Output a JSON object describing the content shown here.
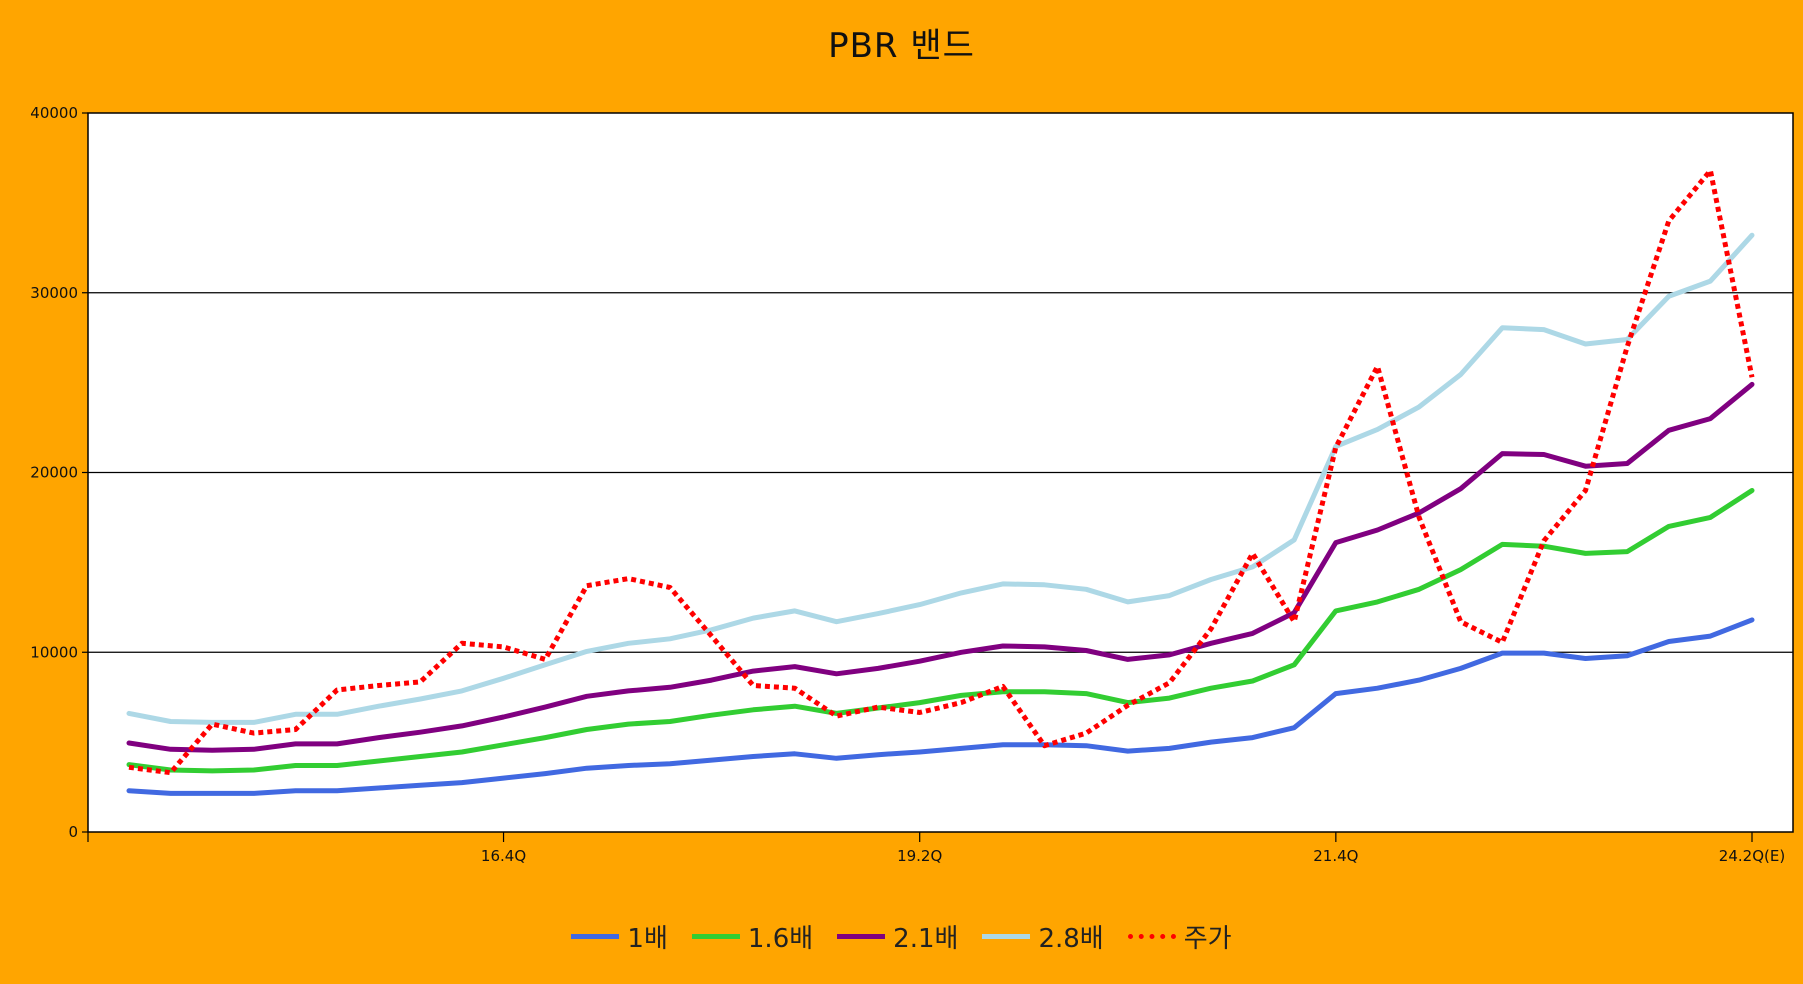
{
  "chart_data": {
    "type": "line",
    "title": "PBR 밴드",
    "xlabel": "",
    "ylabel": "",
    "ylim": [
      0,
      40000
    ],
    "yticks": [
      0,
      10000,
      20000,
      30000,
      40000
    ],
    "x_tick_labels": [
      {
        "index": 9,
        "label": "16.4Q"
      },
      {
        "index": 19,
        "label": "19.2Q"
      },
      {
        "index": 29,
        "label": "21.4Q"
      },
      {
        "index": 39,
        "label": "24.2Q(E)"
      }
    ],
    "grid": "horizontal",
    "legend_position": "bottom",
    "series": [
      {
        "name": "1배",
        "color": "#4169E1",
        "style": "solid",
        "values": [
          2300,
          2150,
          2150,
          2150,
          2300,
          2300,
          2450,
          2600,
          2750,
          3000,
          3250,
          3550,
          3700,
          3800,
          4000,
          4200,
          4350,
          4100,
          4300,
          4450,
          4650,
          4850,
          4850,
          4800,
          4500,
          4650,
          5000,
          5250,
          5800,
          7700,
          8000,
          8450,
          9100,
          9950,
          9950,
          9650,
          9800,
          10600,
          10900,
          11800
        ]
      },
      {
        "name": "1.6배",
        "color": "#32CD32",
        "style": "solid",
        "values": [
          3750,
          3450,
          3400,
          3450,
          3700,
          3700,
          3950,
          4200,
          4450,
          4850,
          5250,
          5700,
          6000,
          6150,
          6500,
          6800,
          7000,
          6600,
          6900,
          7200,
          7600,
          7800,
          7800,
          7700,
          7200,
          7450,
          8000,
          8400,
          9300,
          12300,
          12800,
          13500,
          14600,
          16000,
          15900,
          15500,
          15600,
          17000,
          17500,
          19000
        ]
      },
      {
        "name": "2.1배",
        "color": "#800080",
        "style": "solid",
        "values": [
          4950,
          4600,
          4550,
          4600,
          4900,
          4900,
          5250,
          5550,
          5900,
          6400,
          6950,
          7550,
          7850,
          8050,
          8450,
          8950,
          9200,
          8800,
          9100,
          9500,
          10000,
          10350,
          10300,
          10100,
          9600,
          9850,
          10500,
          11050,
          12200,
          16100,
          16800,
          17750,
          19100,
          21050,
          21000,
          20350,
          20500,
          22350,
          23000,
          24900
        ]
      },
      {
        "name": "2.8배",
        "color": "#ADD8E6",
        "style": "solid",
        "values": [
          6600,
          6150,
          6100,
          6100,
          6550,
          6550,
          7000,
          7400,
          7850,
          8550,
          9300,
          10050,
          10500,
          10750,
          11250,
          11900,
          12300,
          11700,
          12150,
          12650,
          13300,
          13800,
          13750,
          13500,
          12800,
          13150,
          14050,
          14750,
          16250,
          21450,
          22400,
          23650,
          25450,
          28050,
          27950,
          27150,
          27400,
          29800,
          30650,
          33200
        ]
      },
      {
        "name": "주가",
        "color": "#FF0000",
        "style": "dotted",
        "values": [
          3600,
          3300,
          6000,
          5500,
          5700,
          7900,
          8150,
          8350,
          10500,
          10300,
          9600,
          13700,
          14100,
          13600,
          10900,
          8150,
          8000,
          6450,
          6950,
          6650,
          7200,
          8100,
          4800,
          5500,
          7050,
          8300,
          11300,
          15500,
          11700,
          21400,
          25900,
          17500,
          11700,
          10550,
          16200,
          19000,
          27000,
          34000,
          36800,
          25300
        ]
      }
    ]
  }
}
